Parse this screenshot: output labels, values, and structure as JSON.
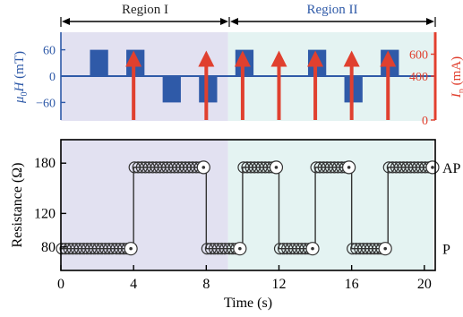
{
  "chart_data": [
    {
      "type": "bar",
      "panel": "top",
      "description": "Field pulses (blue, left axis) and current pulses (red arrows, right axis) versus time",
      "regions": [
        {
          "label": "Region I",
          "x_range": [
            0,
            9.2
          ],
          "color": "#e2e1f1",
          "label_color": "#222222"
        },
        {
          "label": "Region II",
          "x_range": [
            9.2,
            20.5
          ],
          "color": "#e4f3f2",
          "label_color": "#2f5aa8"
        }
      ],
      "left_axis": {
        "label_mu": "μ",
        "label_sub": "0",
        "label_rest": "H (mT)",
        "ylim": [
          -100,
          100
        ],
        "ticks": [
          60,
          0,
          -60
        ],
        "tick_labels": [
          "60",
          "0",
          "−60"
        ],
        "color": "#2f5aa8"
      },
      "right_axis": {
        "label_text": "I",
        "label_sub": "p",
        "label_rest": " (mA)",
        "ylim": [
          0,
          800
        ],
        "ticks": [
          600,
          400,
          0
        ],
        "tick_labels": [
          "600",
          "400",
          "0"
        ],
        "color": "#e0402f"
      },
      "field_pulses": [
        {
          "t_start": 1.6,
          "t_end": 2.6,
          "value": 60
        },
        {
          "t_start": 3.6,
          "t_end": 4.6,
          "value": 60
        },
        {
          "t_start": 5.6,
          "t_end": 6.6,
          "value": -60
        },
        {
          "t_start": 7.6,
          "t_end": 8.6,
          "value": -60
        },
        {
          "t_start": 9.6,
          "t_end": 10.6,
          "value": 60
        },
        {
          "t_start": 13.6,
          "t_end": 14.6,
          "value": 60
        },
        {
          "t_start": 15.6,
          "t_end": 16.6,
          "value": -60
        },
        {
          "t_start": 17.6,
          "t_end": 18.6,
          "value": 60
        }
      ],
      "current_pulses": [
        {
          "t": 4,
          "value": 600
        },
        {
          "t": 8,
          "value": 600
        },
        {
          "t": 10,
          "value": 600
        },
        {
          "t": 12,
          "value": 600
        },
        {
          "t": 14,
          "value": 600
        },
        {
          "t": 16,
          "value": 600
        },
        {
          "t": 18,
          "value": 600
        }
      ]
    },
    {
      "type": "scatter",
      "panel": "bottom",
      "xlabel": "Time (s)",
      "ylabel": "Resistance (Ω)",
      "xlim": [
        0,
        20.6
      ],
      "ylim": [
        52,
        208
      ],
      "x_ticks": [
        0,
        4,
        8,
        12,
        16,
        20
      ],
      "y_ticks": [
        80,
        120,
        180
      ],
      "right_labels": [
        {
          "text": "AP",
          "value": 175
        },
        {
          "text": "P",
          "value": 78
        }
      ],
      "series": [
        {
          "segments": [
            {
              "t_start": 0,
              "t_end": 4,
              "value": 78
            },
            {
              "t_start": 4,
              "t_end": 8,
              "value": 175
            },
            {
              "t_start": 8,
              "t_end": 10,
              "value": 78
            },
            {
              "t_start": 10,
              "t_end": 12,
              "value": 175
            },
            {
              "t_start": 12,
              "t_end": 14,
              "value": 78
            },
            {
              "t_start": 14,
              "t_end": 16,
              "value": 175
            },
            {
              "t_start": 16,
              "t_end": 18,
              "value": 78
            },
            {
              "t_start": 18,
              "t_end": 20.5,
              "value": 175
            }
          ]
        }
      ],
      "colors": {
        "line": "#333333",
        "marker_stroke": "#333333"
      }
    }
  ]
}
